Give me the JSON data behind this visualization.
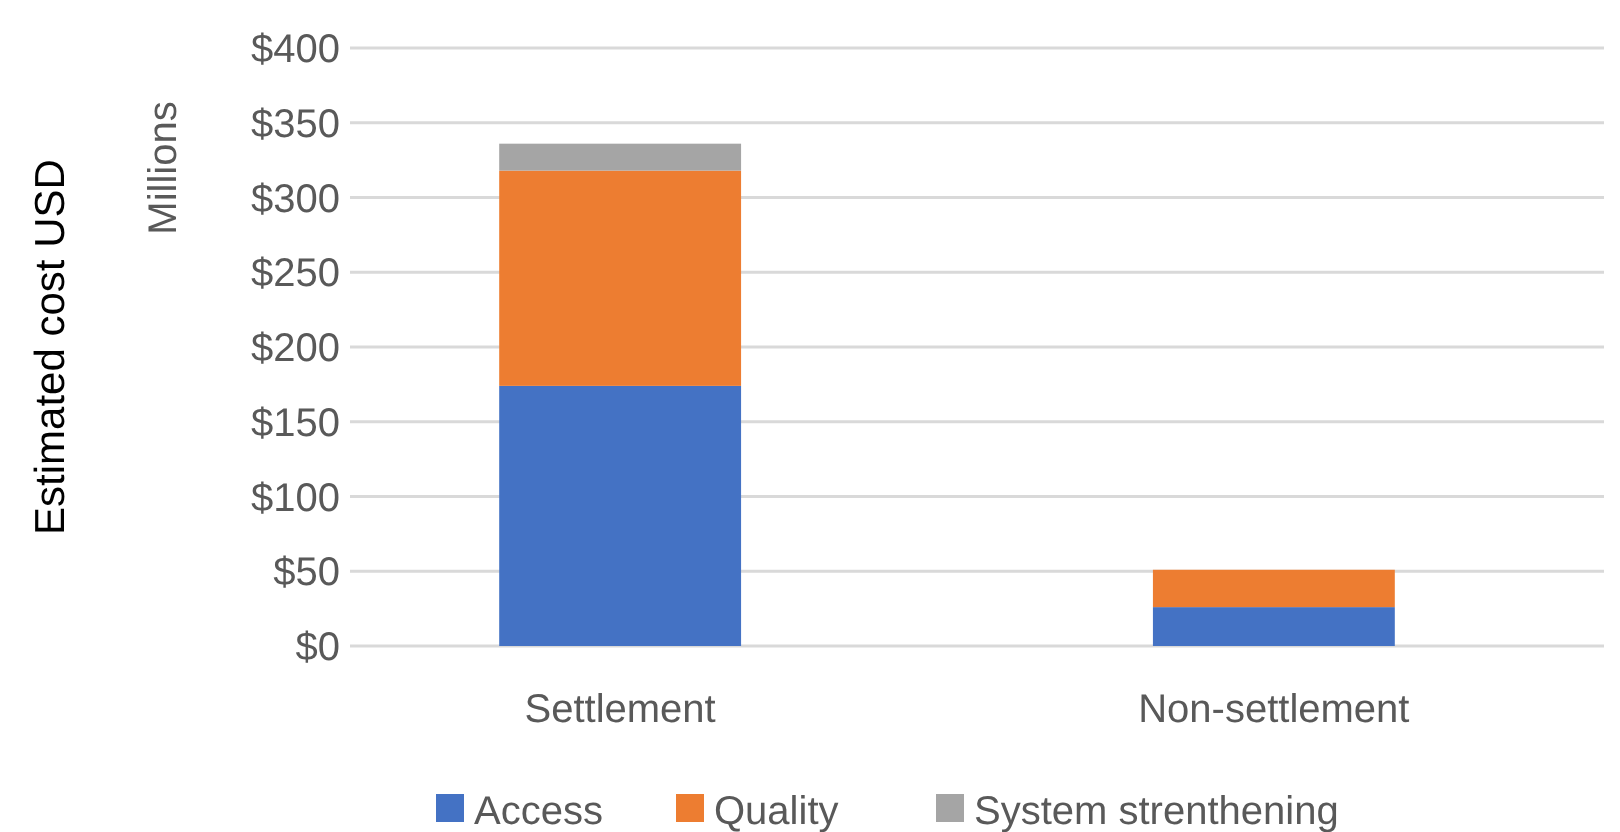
{
  "chart_data": {
    "type": "bar",
    "stacked": true,
    "categories": [
      "Settlement",
      "Non-settlement"
    ],
    "series": [
      {
        "name": "Access",
        "color": "#4472c4",
        "values": [
          174,
          26
        ]
      },
      {
        "name": "Quality",
        "color": "#ed7d31",
        "values": [
          144,
          25
        ]
      },
      {
        "name": "System strenthening",
        "color": "#a5a5a5",
        "values": [
          18,
          0
        ]
      }
    ],
    "ylabel": "Estimated cost USD",
    "annotations": [
      "Millions"
    ],
    "ylim": [
      0,
      400
    ],
    "yticks": [
      {
        "value": 0,
        "label": "$0"
      },
      {
        "value": 50,
        "label": "$50"
      },
      {
        "value": 100,
        "label": "$100"
      },
      {
        "value": 150,
        "label": "$150"
      },
      {
        "value": 200,
        "label": "$200"
      },
      {
        "value": 250,
        "label": "$250"
      },
      {
        "value": 300,
        "label": "$300"
      },
      {
        "value": 350,
        "label": "$350"
      },
      {
        "value": 400,
        "label": "$400"
      }
    ],
    "grid": "y",
    "legend": "bottom"
  }
}
